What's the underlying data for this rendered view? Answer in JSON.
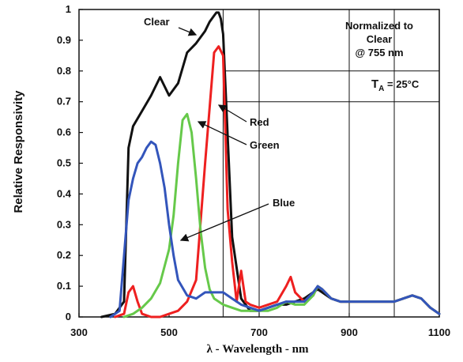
{
  "chart_data": {
    "type": "line",
    "title": "",
    "xlabel": "λ - Wavelength - nm",
    "ylabel": "Relative Responsivity",
    "xlim": [
      300,
      1100
    ],
    "ylim": [
      0,
      1
    ],
    "xticks": [
      "300",
      "500",
      "700",
      "900",
      "1100"
    ],
    "yticks": [
      "0",
      "0.1",
      "0.2",
      "0.3",
      "0.4",
      "0.5",
      "0.6",
      "0.7",
      "0.8",
      "0.9",
      "1"
    ],
    "grid": "partial",
    "annotations": {
      "normalized": [
        "Normalized to",
        "Clear",
        "@ 755 nm"
      ],
      "temp_main": "T",
      "temp_sub": "A",
      "temp_rest": " = 25°C"
    },
    "series": [
      {
        "name": "Clear",
        "color": "#111111",
        "x": [
          350,
          380,
          400,
          410,
          420,
          440,
          460,
          480,
          500,
          520,
          540,
          560,
          580,
          590,
          600,
          605,
          610,
          615,
          620,
          640,
          660,
          680,
          700,
          720,
          740,
          760,
          780,
          800,
          820,
          830,
          840,
          860,
          880,
          900,
          920,
          940,
          960,
          980,
          1000,
          1020,
          1040,
          1060,
          1080,
          1100
        ],
        "y": [
          0.0,
          0.01,
          0.05,
          0.55,
          0.62,
          0.67,
          0.72,
          0.78,
          0.72,
          0.76,
          0.86,
          0.89,
          0.93,
          0.96,
          0.98,
          0.99,
          0.99,
          0.97,
          0.92,
          0.26,
          0.06,
          0.02,
          0.02,
          0.03,
          0.04,
          0.04,
          0.05,
          0.06,
          0.08,
          0.09,
          0.08,
          0.06,
          0.05,
          0.05,
          0.05,
          0.05,
          0.05,
          0.05,
          0.05,
          0.06,
          0.07,
          0.06,
          0.03,
          0.01
        ]
      },
      {
        "name": "Red",
        "color": "#ee2020",
        "x": [
          380,
          400,
          410,
          420,
          430,
          440,
          460,
          480,
          500,
          520,
          540,
          560,
          580,
          590,
          600,
          610,
          620,
          630,
          640,
          650,
          660,
          670,
          680,
          700,
          720,
          740,
          760,
          770,
          780,
          800,
          820,
          830,
          840,
          860,
          880,
          900,
          920,
          940,
          960,
          980,
          1000,
          1020,
          1040,
          1060,
          1080,
          1100
        ],
        "y": [
          0.0,
          0.01,
          0.08,
          0.1,
          0.05,
          0.01,
          0.0,
          0.0,
          0.01,
          0.02,
          0.05,
          0.12,
          0.5,
          0.68,
          0.86,
          0.88,
          0.85,
          0.35,
          0.18,
          0.05,
          0.15,
          0.05,
          0.04,
          0.03,
          0.04,
          0.05,
          0.1,
          0.13,
          0.08,
          0.05,
          0.07,
          0.1,
          0.09,
          0.06,
          0.05,
          0.05,
          0.05,
          0.05,
          0.05,
          0.05,
          0.05,
          0.06,
          0.07,
          0.06,
          0.03,
          0.01
        ]
      },
      {
        "name": "Green",
        "color": "#66c94a",
        "x": [
          400,
          420,
          440,
          460,
          480,
          500,
          510,
          520,
          530,
          540,
          550,
          560,
          570,
          580,
          590,
          600,
          620,
          640,
          660,
          680,
          700,
          720,
          740,
          760,
          780,
          800,
          820,
          830,
          840,
          860,
          880,
          900,
          920,
          940,
          960,
          980,
          1000,
          1020,
          1040,
          1060,
          1080,
          1100
        ],
        "y": [
          0.0,
          0.01,
          0.03,
          0.06,
          0.11,
          0.22,
          0.33,
          0.5,
          0.64,
          0.66,
          0.6,
          0.45,
          0.28,
          0.16,
          0.09,
          0.06,
          0.04,
          0.03,
          0.02,
          0.02,
          0.02,
          0.02,
          0.03,
          0.05,
          0.04,
          0.04,
          0.07,
          0.1,
          0.09,
          0.06,
          0.05,
          0.05,
          0.05,
          0.05,
          0.05,
          0.05,
          0.05,
          0.06,
          0.07,
          0.06,
          0.03,
          0.01
        ]
      },
      {
        "name": "Blue",
        "color": "#3355bb",
        "x": [
          370,
          390,
          400,
          410,
          420,
          430,
          440,
          450,
          460,
          470,
          480,
          490,
          500,
          510,
          520,
          540,
          560,
          580,
          600,
          620,
          640,
          660,
          680,
          700,
          720,
          740,
          760,
          780,
          800,
          820,
          830,
          840,
          860,
          880,
          900,
          920,
          940,
          960,
          980,
          1000,
          1020,
          1040,
          1060,
          1080,
          1100
        ],
        "y": [
          0.0,
          0.02,
          0.2,
          0.38,
          0.45,
          0.5,
          0.52,
          0.55,
          0.57,
          0.56,
          0.5,
          0.42,
          0.3,
          0.2,
          0.12,
          0.07,
          0.06,
          0.08,
          0.08,
          0.08,
          0.06,
          0.04,
          0.03,
          0.02,
          0.03,
          0.04,
          0.05,
          0.05,
          0.05,
          0.08,
          0.1,
          0.09,
          0.06,
          0.05,
          0.05,
          0.05,
          0.05,
          0.05,
          0.05,
          0.05,
          0.06,
          0.07,
          0.06,
          0.03,
          0.01
        ]
      }
    ]
  }
}
